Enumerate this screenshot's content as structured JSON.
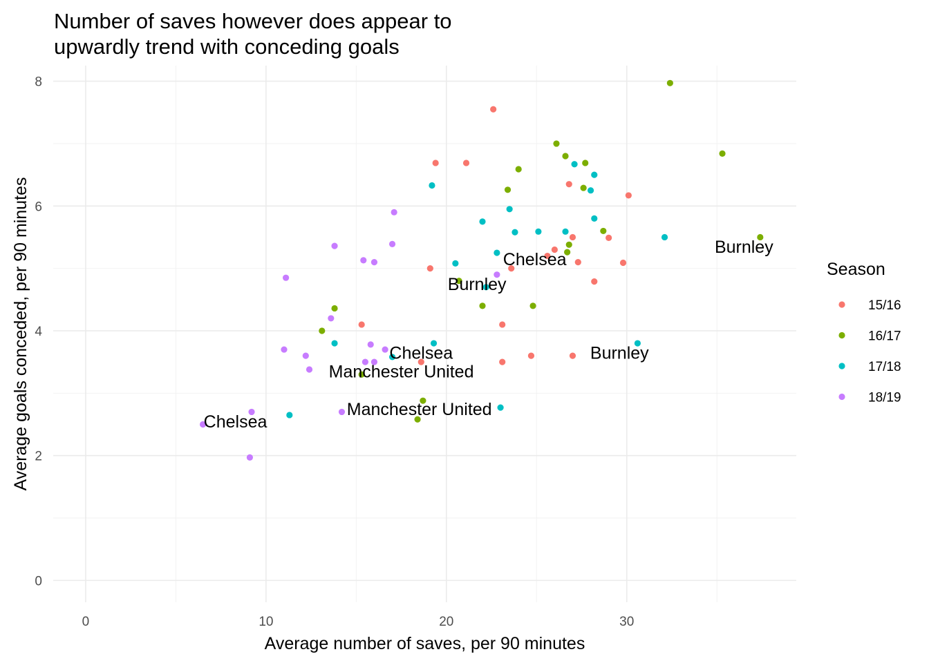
{
  "chart_data": {
    "type": "scatter",
    "title": "Number of saves however does appear to\n upwardly trend with conceding goals",
    "xlabel": "Average number of saves, per 90 minutes",
    "ylabel": "Average goals conceded, per 90 minutes",
    "xlim": [
      -1.8,
      39.4
    ],
    "ylim": [
      -0.35,
      8.25
    ],
    "xticks": [
      0,
      10,
      20,
      30
    ],
    "yticks": [
      0,
      2,
      4,
      6,
      8
    ],
    "grid": true,
    "legend": {
      "title": "Season",
      "position": "right",
      "entries": [
        {
          "name": "15/16",
          "color": "#F8766D"
        },
        {
          "name": "16/17",
          "color": "#7CAE00"
        },
        {
          "name": "17/18",
          "color": "#00BFC4"
        },
        {
          "name": "18/19",
          "color": "#C77CFF"
        }
      ]
    },
    "series": [
      {
        "name": "15/16",
        "color": "#F8766D",
        "points": [
          [
            22.6,
            7.55
          ],
          [
            19.4,
            6.69
          ],
          [
            21.1,
            6.69
          ],
          [
            26.8,
            6.35
          ],
          [
            30.1,
            6.17
          ],
          [
            27.0,
            5.5
          ],
          [
            29.0,
            5.49
          ],
          [
            26.0,
            5.3
          ],
          [
            25.6,
            5.2
          ],
          [
            27.3,
            5.1
          ],
          [
            29.8,
            5.09
          ],
          [
            23.6,
            5.0
          ],
          [
            19.1,
            5.0
          ],
          [
            28.2,
            4.79
          ],
          [
            15.3,
            4.1
          ],
          [
            23.1,
            4.1
          ],
          [
            24.7,
            3.6
          ],
          [
            27.0,
            3.6
          ],
          [
            23.1,
            3.5
          ],
          [
            18.6,
            3.5
          ]
        ]
      },
      {
        "name": "16/17",
        "color": "#7CAE00",
        "points": [
          [
            32.4,
            7.97
          ],
          [
            35.3,
            6.84
          ],
          [
            26.1,
            7.0
          ],
          [
            26.6,
            6.8
          ],
          [
            27.7,
            6.69
          ],
          [
            24.0,
            6.59
          ],
          [
            23.4,
            6.26
          ],
          [
            27.6,
            6.29
          ],
          [
            28.7,
            5.6
          ],
          [
            37.4,
            5.5
          ],
          [
            26.8,
            5.38
          ],
          [
            26.7,
            5.26
          ],
          [
            20.7,
            4.8
          ],
          [
            22.0,
            4.4
          ],
          [
            24.8,
            4.4
          ],
          [
            13.8,
            4.36
          ],
          [
            13.1,
            4.0
          ],
          [
            15.3,
            3.3
          ],
          [
            18.7,
            2.88
          ],
          [
            18.4,
            2.58
          ]
        ]
      },
      {
        "name": "17/18",
        "color": "#00BFC4",
        "points": [
          [
            19.2,
            6.33
          ],
          [
            27.1,
            6.67
          ],
          [
            28.2,
            6.5
          ],
          [
            28.0,
            6.25
          ],
          [
            23.5,
            5.95
          ],
          [
            28.2,
            5.8
          ],
          [
            22.0,
            5.75
          ],
          [
            25.1,
            5.59
          ],
          [
            23.8,
            5.58
          ],
          [
            26.6,
            5.59
          ],
          [
            32.1,
            5.5
          ],
          [
            22.8,
            5.25
          ],
          [
            20.5,
            5.08
          ],
          [
            22.2,
            4.7
          ],
          [
            30.6,
            3.8
          ],
          [
            13.8,
            3.8
          ],
          [
            19.3,
            3.8
          ],
          [
            17.0,
            3.58
          ],
          [
            11.3,
            2.65
          ],
          [
            23.0,
            2.77
          ]
        ]
      },
      {
        "name": "18/19",
        "color": "#C77CFF",
        "points": [
          [
            17.1,
            5.9
          ],
          [
            13.8,
            5.36
          ],
          [
            17.0,
            5.39
          ],
          [
            15.4,
            5.13
          ],
          [
            16.0,
            5.1
          ],
          [
            11.1,
            4.85
          ],
          [
            22.8,
            4.9
          ],
          [
            13.6,
            4.2
          ],
          [
            11.0,
            3.7
          ],
          [
            15.8,
            3.78
          ],
          [
            16.6,
            3.7
          ],
          [
            12.2,
            3.6
          ],
          [
            15.5,
            3.5
          ],
          [
            16.0,
            3.5
          ],
          [
            12.4,
            3.38
          ],
          [
            9.2,
            2.7
          ],
          [
            14.2,
            2.7
          ],
          [
            6.5,
            2.5
          ],
          [
            9.1,
            1.97
          ]
        ]
      }
    ],
    "annotations": [
      {
        "text": "Burnley",
        "x": 36.5,
        "y": 5.35
      },
      {
        "text": "Chelsea",
        "x": 24.9,
        "y": 5.15
      },
      {
        "text": "Burnley",
        "x": 21.7,
        "y": 4.75
      },
      {
        "text": "Burnley",
        "x": 29.6,
        "y": 3.65
      },
      {
        "text": "Chelsea",
        "x": 18.6,
        "y": 3.65
      },
      {
        "text": "Manchester United",
        "x": 17.5,
        "y": 3.35
      },
      {
        "text": "Manchester United",
        "x": 18.5,
        "y": 2.75
      },
      {
        "text": "Chelsea",
        "x": 8.3,
        "y": 2.55
      }
    ]
  }
}
